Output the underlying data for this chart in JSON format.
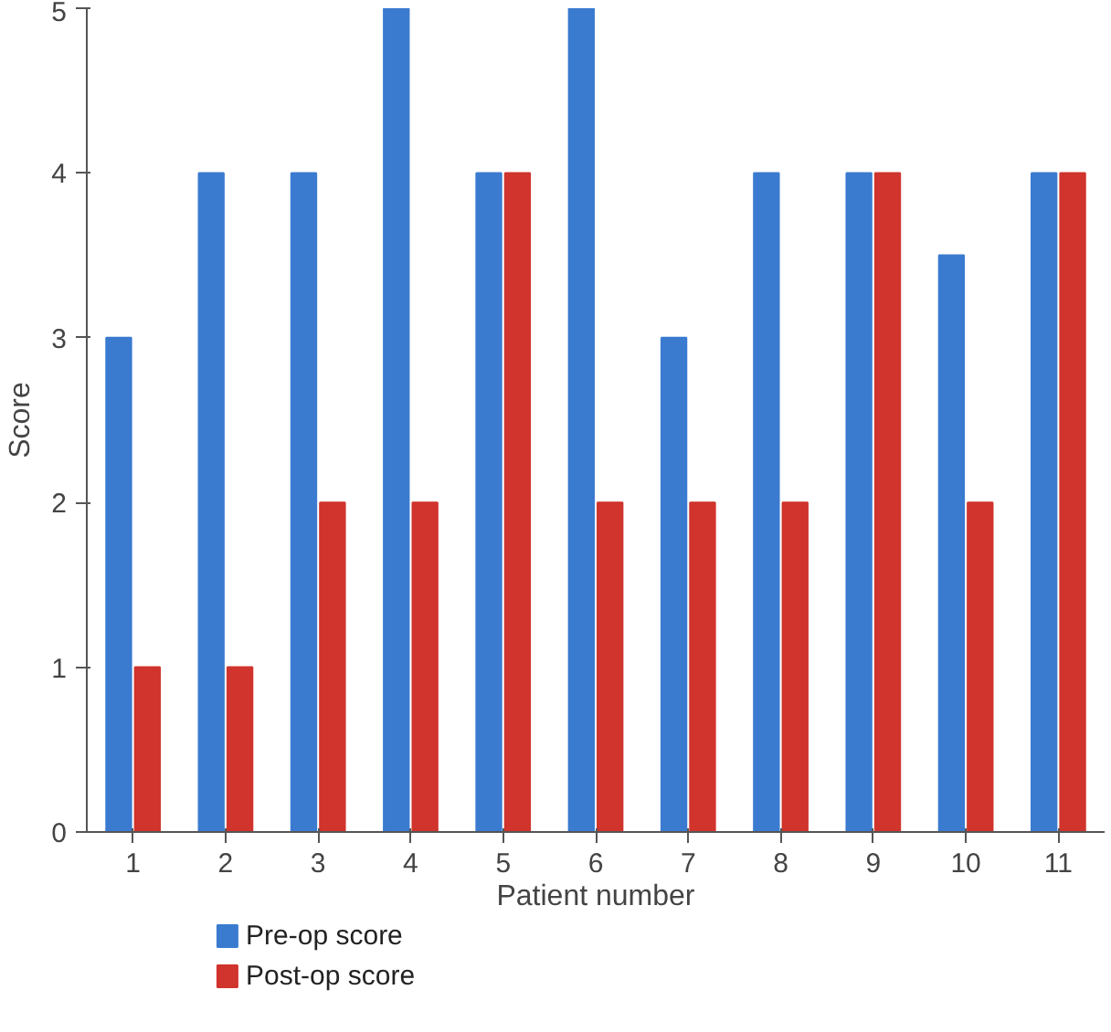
{
  "chart_data": {
    "type": "bar",
    "xlabel": "Patient number",
    "ylabel": "Score",
    "categories": [
      "1",
      "2",
      "3",
      "4",
      "5",
      "6",
      "7",
      "8",
      "9",
      "10",
      "11"
    ],
    "series": [
      {
        "name": "Pre-op score",
        "color": "#3a7bd0",
        "values": [
          3,
          4,
          4,
          5,
          4,
          5,
          3,
          4,
          4,
          3.5,
          4
        ]
      },
      {
        "name": "Post-op score",
        "color": "#d0342c",
        "values": [
          1,
          1,
          2,
          2,
          4,
          2,
          2,
          2,
          4,
          2,
          4
        ]
      }
    ],
    "ylim": [
      0,
      5
    ],
    "yticks": [
      0,
      1,
      2,
      3,
      4,
      5
    ],
    "grid": false,
    "legend": "bottom left"
  }
}
